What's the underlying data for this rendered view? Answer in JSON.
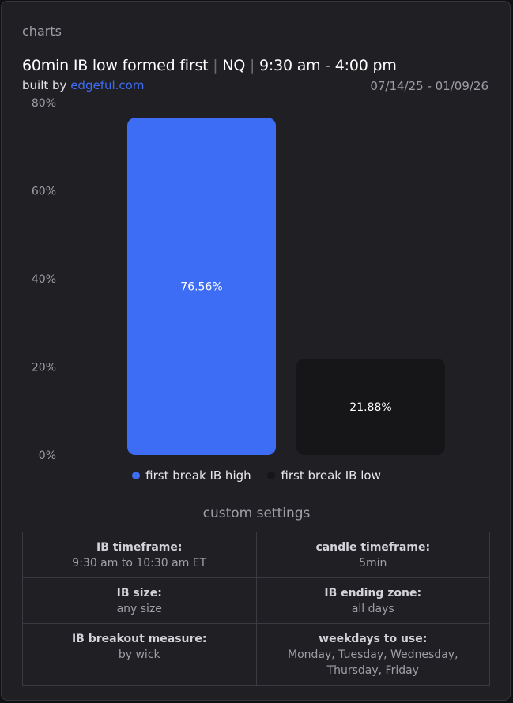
{
  "section_label": "charts",
  "header": {
    "title_part1": "60min IB low formed first",
    "separator": "|",
    "title_part2": "NQ",
    "title_part3": "9:30 am - 4:00 pm",
    "built_by_prefix": "built by",
    "built_by_link": "edgeful.com",
    "date_range": "07/14/25 - 01/09/26"
  },
  "chart_data": {
    "type": "bar",
    "categories": [
      "first break IB high",
      "first break IB low"
    ],
    "values": [
      76.56,
      21.88
    ],
    "data_labels": [
      "76.56%",
      "21.88%"
    ],
    "colors": [
      "#3d6cf5",
      "#161618"
    ],
    "ylim": [
      0,
      80
    ],
    "yticks": [
      0,
      20,
      40,
      60,
      80
    ],
    "ytick_labels": [
      "0%",
      "20%",
      "40%",
      "60%",
      "80%"
    ],
    "grid": false,
    "legend": "bottom-center"
  },
  "settings": {
    "title": "custom settings",
    "rows": [
      [
        {
          "label": "IB timeframe:",
          "value": "9:30 am to 10:30 am ET"
        },
        {
          "label": "candle timeframe:",
          "value": "5min"
        }
      ],
      [
        {
          "label": "IB size:",
          "value": "any size"
        },
        {
          "label": "IB ending zone:",
          "value": "all days"
        }
      ],
      [
        {
          "label": "IB breakout measure:",
          "value": "by wick"
        },
        {
          "label": "weekdays to use:",
          "value": "Monday, Tuesday, Wednesday, Thursday, Friday"
        }
      ]
    ]
  }
}
